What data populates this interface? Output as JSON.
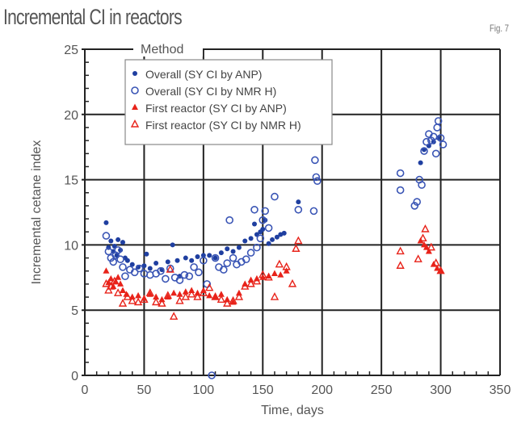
{
  "title": "Incremental CI in reactors",
  "fig_label": "Fig. 7",
  "chart_data": {
    "type": "scatter",
    "title": "Incremental CI in reactors",
    "xlabel": "Time, days",
    "ylabel": "Incremental cetane index",
    "xlim": [
      0,
      350
    ],
    "ylim": [
      0,
      25
    ],
    "xticks": [
      "0",
      "50",
      "100",
      "150",
      "200",
      "250",
      "300",
      "350"
    ],
    "yticks": [
      "0",
      "5",
      "10",
      "15",
      "20",
      "25"
    ],
    "grid": true,
    "legend": {
      "title": "Method",
      "placement": "top-left"
    },
    "series": [
      {
        "name": "Overall (SY CI by ANP)",
        "marker": "filled-circle",
        "color": "#1f3fa0",
        "points": [
          [
            18,
            11.7
          ],
          [
            20,
            9.8
          ],
          [
            22,
            10.3
          ],
          [
            24,
            9.5
          ],
          [
            25,
            9.9
          ],
          [
            27,
            9.2
          ],
          [
            28,
            10.4
          ],
          [
            30,
            9.6
          ],
          [
            32,
            10.2
          ],
          [
            34,
            9.0
          ],
          [
            36,
            8.8
          ],
          [
            40,
            8.5
          ],
          [
            45,
            8.3
          ],
          [
            50,
            8.4
          ],
          [
            52,
            9.3
          ],
          [
            55,
            8.2
          ],
          [
            60,
            8.6
          ],
          [
            65,
            8.1
          ],
          [
            70,
            8.7
          ],
          [
            74,
            10.0
          ],
          [
            78,
            8.8
          ],
          [
            80,
            7.6
          ],
          [
            85,
            9.0
          ],
          [
            90,
            8.8
          ],
          [
            95,
            9.1
          ],
          [
            100,
            9.2
          ],
          [
            105,
            9.2
          ],
          [
            110,
            9.0
          ],
          [
            115,
            9.4
          ],
          [
            120,
            9.7
          ],
          [
            125,
            9.5
          ],
          [
            130,
            9.8
          ],
          [
            135,
            10.3
          ],
          [
            140,
            10.5
          ],
          [
            143,
            11.6
          ],
          [
            145,
            10.8
          ],
          [
            148,
            11.0
          ],
          [
            150,
            11.2
          ],
          [
            152,
            11.9
          ],
          [
            155,
            10.1
          ],
          [
            158,
            10.4
          ],
          [
            162,
            10.6
          ],
          [
            165,
            10.8
          ],
          [
            168,
            10.9
          ],
          [
            180,
            13.3
          ],
          [
            283,
            16.3
          ],
          [
            286,
            17.3
          ],
          [
            290,
            17.6
          ],
          [
            294,
            17.9
          ],
          [
            298,
            18.2
          ]
        ]
      },
      {
        "name": "Overall (SY CI by NMR H)",
        "marker": "open-circle",
        "color": "#3a55b5",
        "points": [
          [
            18,
            10.7
          ],
          [
            20,
            9.5
          ],
          [
            22,
            9.0
          ],
          [
            24,
            8.7
          ],
          [
            26,
            9.2
          ],
          [
            28,
            9.6
          ],
          [
            30,
            8.9
          ],
          [
            32,
            8.3
          ],
          [
            34,
            7.6
          ],
          [
            38,
            8.1
          ],
          [
            42,
            7.9
          ],
          [
            46,
            8.2
          ],
          [
            50,
            7.8
          ],
          [
            55,
            7.7
          ],
          [
            60,
            7.8
          ],
          [
            64,
            8.0
          ],
          [
            68,
            7.4
          ],
          [
            72,
            8.2
          ],
          [
            76,
            7.5
          ],
          [
            80,
            7.3
          ],
          [
            84,
            7.7
          ],
          [
            88,
            7.6
          ],
          [
            92,
            8.3
          ],
          [
            96,
            7.9
          ],
          [
            100,
            8.8
          ],
          [
            103,
            7.0
          ],
          [
            107,
            0.0
          ],
          [
            110,
            9.0
          ],
          [
            113,
            8.3
          ],
          [
            117,
            8.1
          ],
          [
            120,
            8.6
          ],
          [
            122,
            11.9
          ],
          [
            125,
            9.0
          ],
          [
            128,
            8.5
          ],
          [
            132,
            8.7
          ],
          [
            136,
            8.9
          ],
          [
            140,
            9.4
          ],
          [
            143,
            12.7
          ],
          [
            145,
            9.8
          ],
          [
            148,
            10.5
          ],
          [
            150,
            11.9
          ],
          [
            152,
            12.6
          ],
          [
            155,
            11.3
          ],
          [
            160,
            13.7
          ],
          [
            180,
            12.7
          ],
          [
            194,
            16.5
          ],
          [
            195,
            15.2
          ],
          [
            196,
            14.9
          ],
          [
            193,
            12.6
          ],
          [
            266,
            15.5
          ],
          [
            266,
            14.2
          ],
          [
            278,
            13.0
          ],
          [
            280,
            13.3
          ],
          [
            282,
            15.0
          ],
          [
            284,
            14.6
          ],
          [
            286,
            17.2
          ],
          [
            288,
            17.9
          ],
          [
            290,
            18.5
          ],
          [
            292,
            18.0
          ],
          [
            294,
            18.3
          ],
          [
            296,
            17.0
          ],
          [
            297,
            19.0
          ],
          [
            298,
            19.5
          ],
          [
            300,
            18.2
          ],
          [
            302,
            17.7
          ]
        ]
      },
      {
        "name": "First reactor (SY CI by ANP)",
        "marker": "filled-triangle",
        "color": "#e8231a",
        "points": [
          [
            18,
            8.0
          ],
          [
            20,
            7.1
          ],
          [
            22,
            7.4
          ],
          [
            24,
            6.8
          ],
          [
            26,
            7.2
          ],
          [
            28,
            7.5
          ],
          [
            30,
            7.0
          ],
          [
            32,
            6.5
          ],
          [
            35,
            6.2
          ],
          [
            40,
            6.0
          ],
          [
            45,
            6.1
          ],
          [
            50,
            5.9
          ],
          [
            55,
            6.2
          ],
          [
            60,
            6.0
          ],
          [
            65,
            5.8
          ],
          [
            70,
            6.0
          ],
          [
            75,
            6.3
          ],
          [
            80,
            6.2
          ],
          [
            85,
            6.4
          ],
          [
            90,
            6.5
          ],
          [
            95,
            6.3
          ],
          [
            100,
            6.5
          ],
          [
            105,
            6.1
          ],
          [
            110,
            6.0
          ],
          [
            115,
            6.2
          ],
          [
            120,
            5.8
          ],
          [
            125,
            5.6
          ],
          [
            130,
            6.3
          ],
          [
            135,
            7.0
          ],
          [
            140,
            7.3
          ],
          [
            145,
            7.4
          ],
          [
            150,
            7.5
          ],
          [
            155,
            7.6
          ],
          [
            160,
            7.8
          ],
          [
            165,
            7.7
          ],
          [
            170,
            8.0
          ],
          [
            283,
            10.3
          ],
          [
            286,
            10.0
          ],
          [
            288,
            9.8
          ],
          [
            290,
            9.5
          ],
          [
            294,
            8.5
          ],
          [
            297,
            8.2
          ],
          [
            300,
            8.0
          ]
        ]
      },
      {
        "name": "First reactor (SY CI by NMR H)",
        "marker": "open-triangle",
        "color": "#e8231a",
        "points": [
          [
            18,
            7.0
          ],
          [
            20,
            6.5
          ],
          [
            22,
            6.8
          ],
          [
            25,
            7.2
          ],
          [
            28,
            6.3
          ],
          [
            32,
            5.5
          ],
          [
            36,
            6.0
          ],
          [
            40,
            5.7
          ],
          [
            45,
            5.6
          ],
          [
            50,
            5.8
          ],
          [
            55,
            6.3
          ],
          [
            60,
            5.6
          ],
          [
            65,
            5.5
          ],
          [
            70,
            6.1
          ],
          [
            72,
            8.1
          ],
          [
            75,
            4.5
          ],
          [
            80,
            5.7
          ],
          [
            85,
            6.0
          ],
          [
            90,
            6.2
          ],
          [
            95,
            6.0
          ],
          [
            100,
            6.3
          ],
          [
            105,
            6.7
          ],
          [
            110,
            6.0
          ],
          [
            115,
            5.8
          ],
          [
            120,
            5.5
          ],
          [
            125,
            5.7
          ],
          [
            130,
            6.0
          ],
          [
            135,
            6.8
          ],
          [
            140,
            7.0
          ],
          [
            145,
            7.2
          ],
          [
            150,
            7.7
          ],
          [
            155,
            7.5
          ],
          [
            160,
            6.0
          ],
          [
            164,
            8.5
          ],
          [
            170,
            8.3
          ],
          [
            175,
            7.0
          ],
          [
            178,
            9.7
          ],
          [
            180,
            10.3
          ],
          [
            266,
            9.5
          ],
          [
            266,
            8.4
          ],
          [
            281,
            8.9
          ],
          [
            285,
            10.5
          ],
          [
            287,
            11.2
          ],
          [
            292,
            9.8
          ],
          [
            296,
            8.6
          ],
          [
            300,
            8.0
          ]
        ]
      }
    ]
  }
}
